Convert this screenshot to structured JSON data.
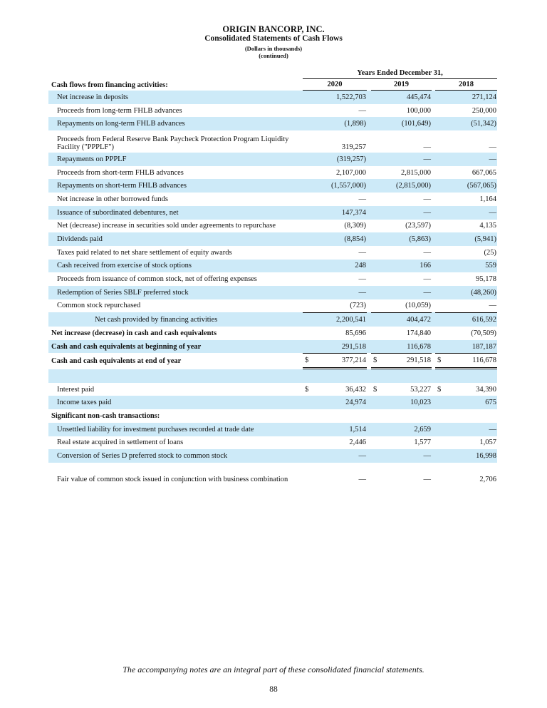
{
  "header": {
    "company": "ORIGIN BANCORP, INC.",
    "title": "Consolidated Statements of Cash Flows",
    "units": "(Dollars in thousands)",
    "continued": "(continued)"
  },
  "table": {
    "period_header": "Years Ended December 31,",
    "section_label": "Cash flows from financing activities:",
    "years": [
      "2020",
      "2019",
      "2018"
    ],
    "rows": [
      {
        "label": "Net increase in deposits",
        "values": [
          "1,522,703",
          "445,474",
          "271,124"
        ],
        "shade": true
      },
      {
        "label": "Proceeds from long-term FHLB advances",
        "values": [
          "—",
          "100,000",
          "250,000"
        ]
      },
      {
        "label": "Repayments on long-term FHLB advances",
        "values": [
          "(1,898)",
          "(101,649)",
          "(51,342)"
        ],
        "shade": true
      },
      {
        "label": "Proceeds from Federal Reserve Bank Paycheck Protection Program Liquidity Facility (\"PPPLF\")",
        "values": [
          "319,257",
          "—",
          "—"
        ],
        "two": true
      },
      {
        "label": "Repayments on PPPLF",
        "values": [
          "(319,257)",
          "—",
          "—"
        ],
        "shade": true
      },
      {
        "label": "Proceeds from short-term FHLB advances",
        "values": [
          "2,107,000",
          "2,815,000",
          "667,065"
        ]
      },
      {
        "label": "Repayments on short-term FHLB advances",
        "values": [
          "(1,557,000)",
          "(2,815,000)",
          "(567,065)"
        ],
        "shade": true
      },
      {
        "label": "Net increase in other borrowed funds",
        "values": [
          "—",
          "—",
          "1,164"
        ]
      },
      {
        "label": "Issuance of subordinated debentures, net",
        "values": [
          "147,374",
          "—",
          "—"
        ],
        "shade": true
      },
      {
        "label": "Net (decrease) increase in securities sold under agreements to repurchase",
        "values": [
          "(8,309)",
          "(23,597)",
          "4,135"
        ]
      },
      {
        "label": "Dividends paid",
        "values": [
          "(8,854)",
          "(5,863)",
          "(5,941)"
        ],
        "shade": true
      },
      {
        "label": "Taxes paid related to net share settlement of equity awards",
        "values": [
          "—",
          "—",
          "(25)"
        ]
      },
      {
        "label": "Cash received from exercise of stock options",
        "values": [
          "248",
          "166",
          "559"
        ],
        "shade": true
      },
      {
        "label": "Proceeds from issuance of common stock, net of offering expenses",
        "values": [
          "—",
          "—",
          "95,178"
        ]
      },
      {
        "label": "Redemption of Series SBLF preferred stock",
        "values": [
          "—",
          "—",
          "(48,260)"
        ],
        "shade": true
      },
      {
        "label": "Common stock repurchased",
        "values": [
          "(723)",
          "(10,059)",
          "—"
        ]
      },
      {
        "label": "Net cash provided by financing activities",
        "values": [
          "2,200,541",
          "404,472",
          "616,592"
        ],
        "shade": true,
        "total": true,
        "top": true
      },
      {
        "label": "Net increase (decrease) in cash and cash equivalents",
        "values": [
          "85,696",
          "174,840",
          "(70,509)"
        ],
        "bold": true
      },
      {
        "label": "Cash and cash equivalents at beginning of year",
        "values": [
          "291,518",
          "116,678",
          "187,187"
        ],
        "bold": true,
        "shade": true
      },
      {
        "label": "Cash and cash equivalents at end of year",
        "values": [
          "377,214",
          "291,518",
          "116,678"
        ],
        "bold": true,
        "dollar": true,
        "top": true,
        "dbl": true
      },
      {
        "label": "",
        "values": [
          "",
          "",
          ""
        ],
        "shade": true,
        "blank": true
      },
      {
        "label": "Interest paid",
        "values": [
          "36,432",
          "53,227",
          "34,390"
        ],
        "dollar": true
      },
      {
        "label": "Income taxes paid",
        "values": [
          "24,974",
          "10,023",
          "675"
        ],
        "shade": true
      },
      {
        "label": "Significant non-cash transactions:",
        "values": [
          "",
          "",
          ""
        ],
        "bold": true
      },
      {
        "label": "Unsettled liability for investment purchases recorded at trade date",
        "values": [
          "1,514",
          "2,659",
          "—"
        ],
        "shade": true
      },
      {
        "label": "Real estate acquired in settlement of loans",
        "values": [
          "2,446",
          "1,577",
          "1,057"
        ]
      },
      {
        "label": "Conversion of Series D preferred stock to common stock",
        "values": [
          "—",
          "—",
          "16,998"
        ],
        "shade": true
      },
      {
        "label": "Fair value of common stock issued in conjunction with business combination",
        "values": [
          "—",
          "—",
          "2,706"
        ],
        "two": true
      }
    ],
    "currency_symbol": "$"
  },
  "footer": {
    "note": "The accompanying notes are an integral part of these consolidated financial statements.",
    "page_number": "88"
  }
}
